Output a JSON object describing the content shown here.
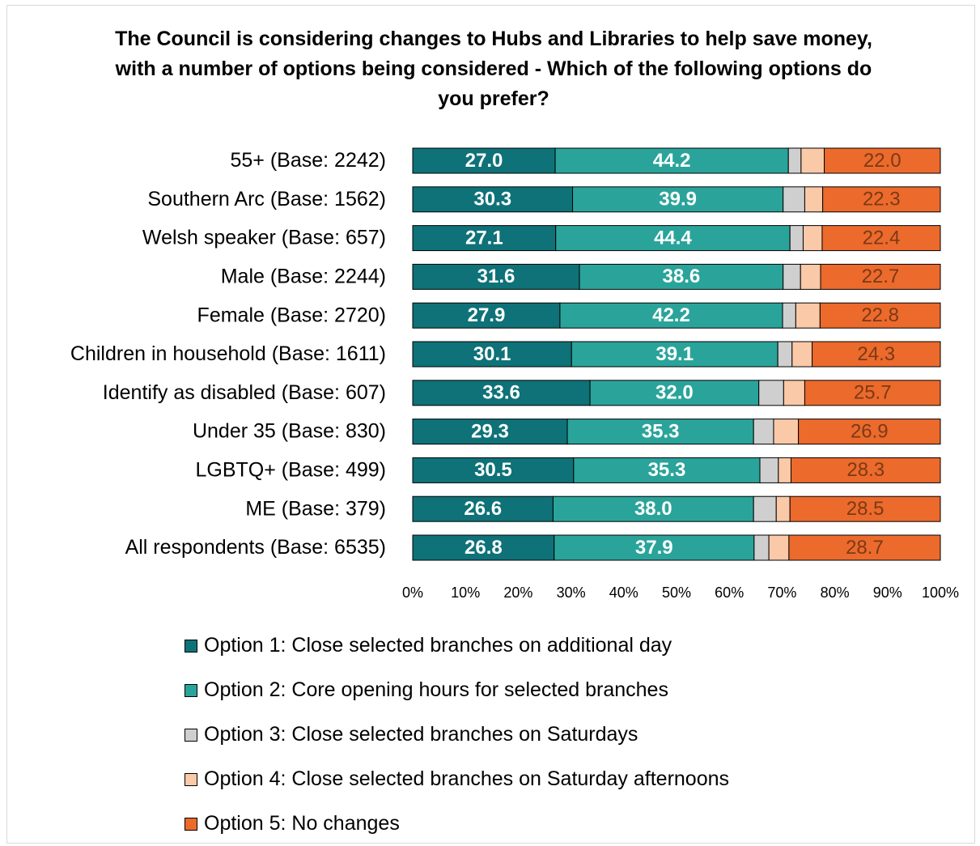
{
  "chart_data": {
    "type": "bar",
    "orientation": "horizontal",
    "stacked": true,
    "title": "The Council is considering changes to Hubs and Libraries to help save money, with a number of options being considered  -  Which of the following options do you prefer?",
    "categories": [
      "55+ (Base: 2242)",
      "Southern Arc (Base: 1562)",
      "Welsh speaker (Base: 657)",
      "Male (Base: 2244)",
      "Female (Base: 2720)",
      "Children in household (Base: 1611)",
      "Identify as disabled (Base: 607)",
      "Under 35 (Base: 830)",
      "LGBTQ+ (Base: 499)",
      "ME (Base: 379)",
      "All respondents (Base: 6535)"
    ],
    "series": [
      {
        "name": "Option 1: Close selected branches on additional day",
        "color": "#0e7278",
        "label_style": "light",
        "values": [
          27.0,
          30.3,
          27.1,
          31.6,
          27.9,
          30.1,
          33.6,
          29.3,
          30.5,
          26.6,
          26.8
        ]
      },
      {
        "name": "Option 2: Core opening hours for selected branches",
        "color": "#2aa49a",
        "label_style": "light",
        "values": [
          44.2,
          39.9,
          44.4,
          38.6,
          42.2,
          39.1,
          32.0,
          35.3,
          35.3,
          38.0,
          37.9
        ]
      },
      {
        "name": "Option 3: Close selected branches on Saturdays",
        "color": "#cfcfcf",
        "label_style": "none",
        "values": [
          2.4,
          4.1,
          2.5,
          3.3,
          2.5,
          2.7,
          4.7,
          3.8,
          3.5,
          4.3,
          2.8
        ]
      },
      {
        "name": "Option 4: Close selected branches on Saturday afternoons",
        "color": "#f9c9a8",
        "label_style": "none",
        "values": [
          4.4,
          3.4,
          3.6,
          3.8,
          4.6,
          3.8,
          4.0,
          4.7,
          2.4,
          2.6,
          3.8
        ]
      },
      {
        "name": "Option 5: No changes",
        "color": "#ec6a2c",
        "label_style": "dark",
        "values": [
          22.0,
          22.3,
          22.4,
          22.7,
          22.8,
          24.3,
          25.7,
          26.9,
          28.3,
          28.5,
          28.7
        ]
      }
    ],
    "xlim": [
      0,
      100
    ],
    "xticks": [
      "0%",
      "10%",
      "20%",
      "30%",
      "40%",
      "50%",
      "60%",
      "70%",
      "80%",
      "90%",
      "100%"
    ],
    "grid": false,
    "legend_position": "bottom"
  }
}
